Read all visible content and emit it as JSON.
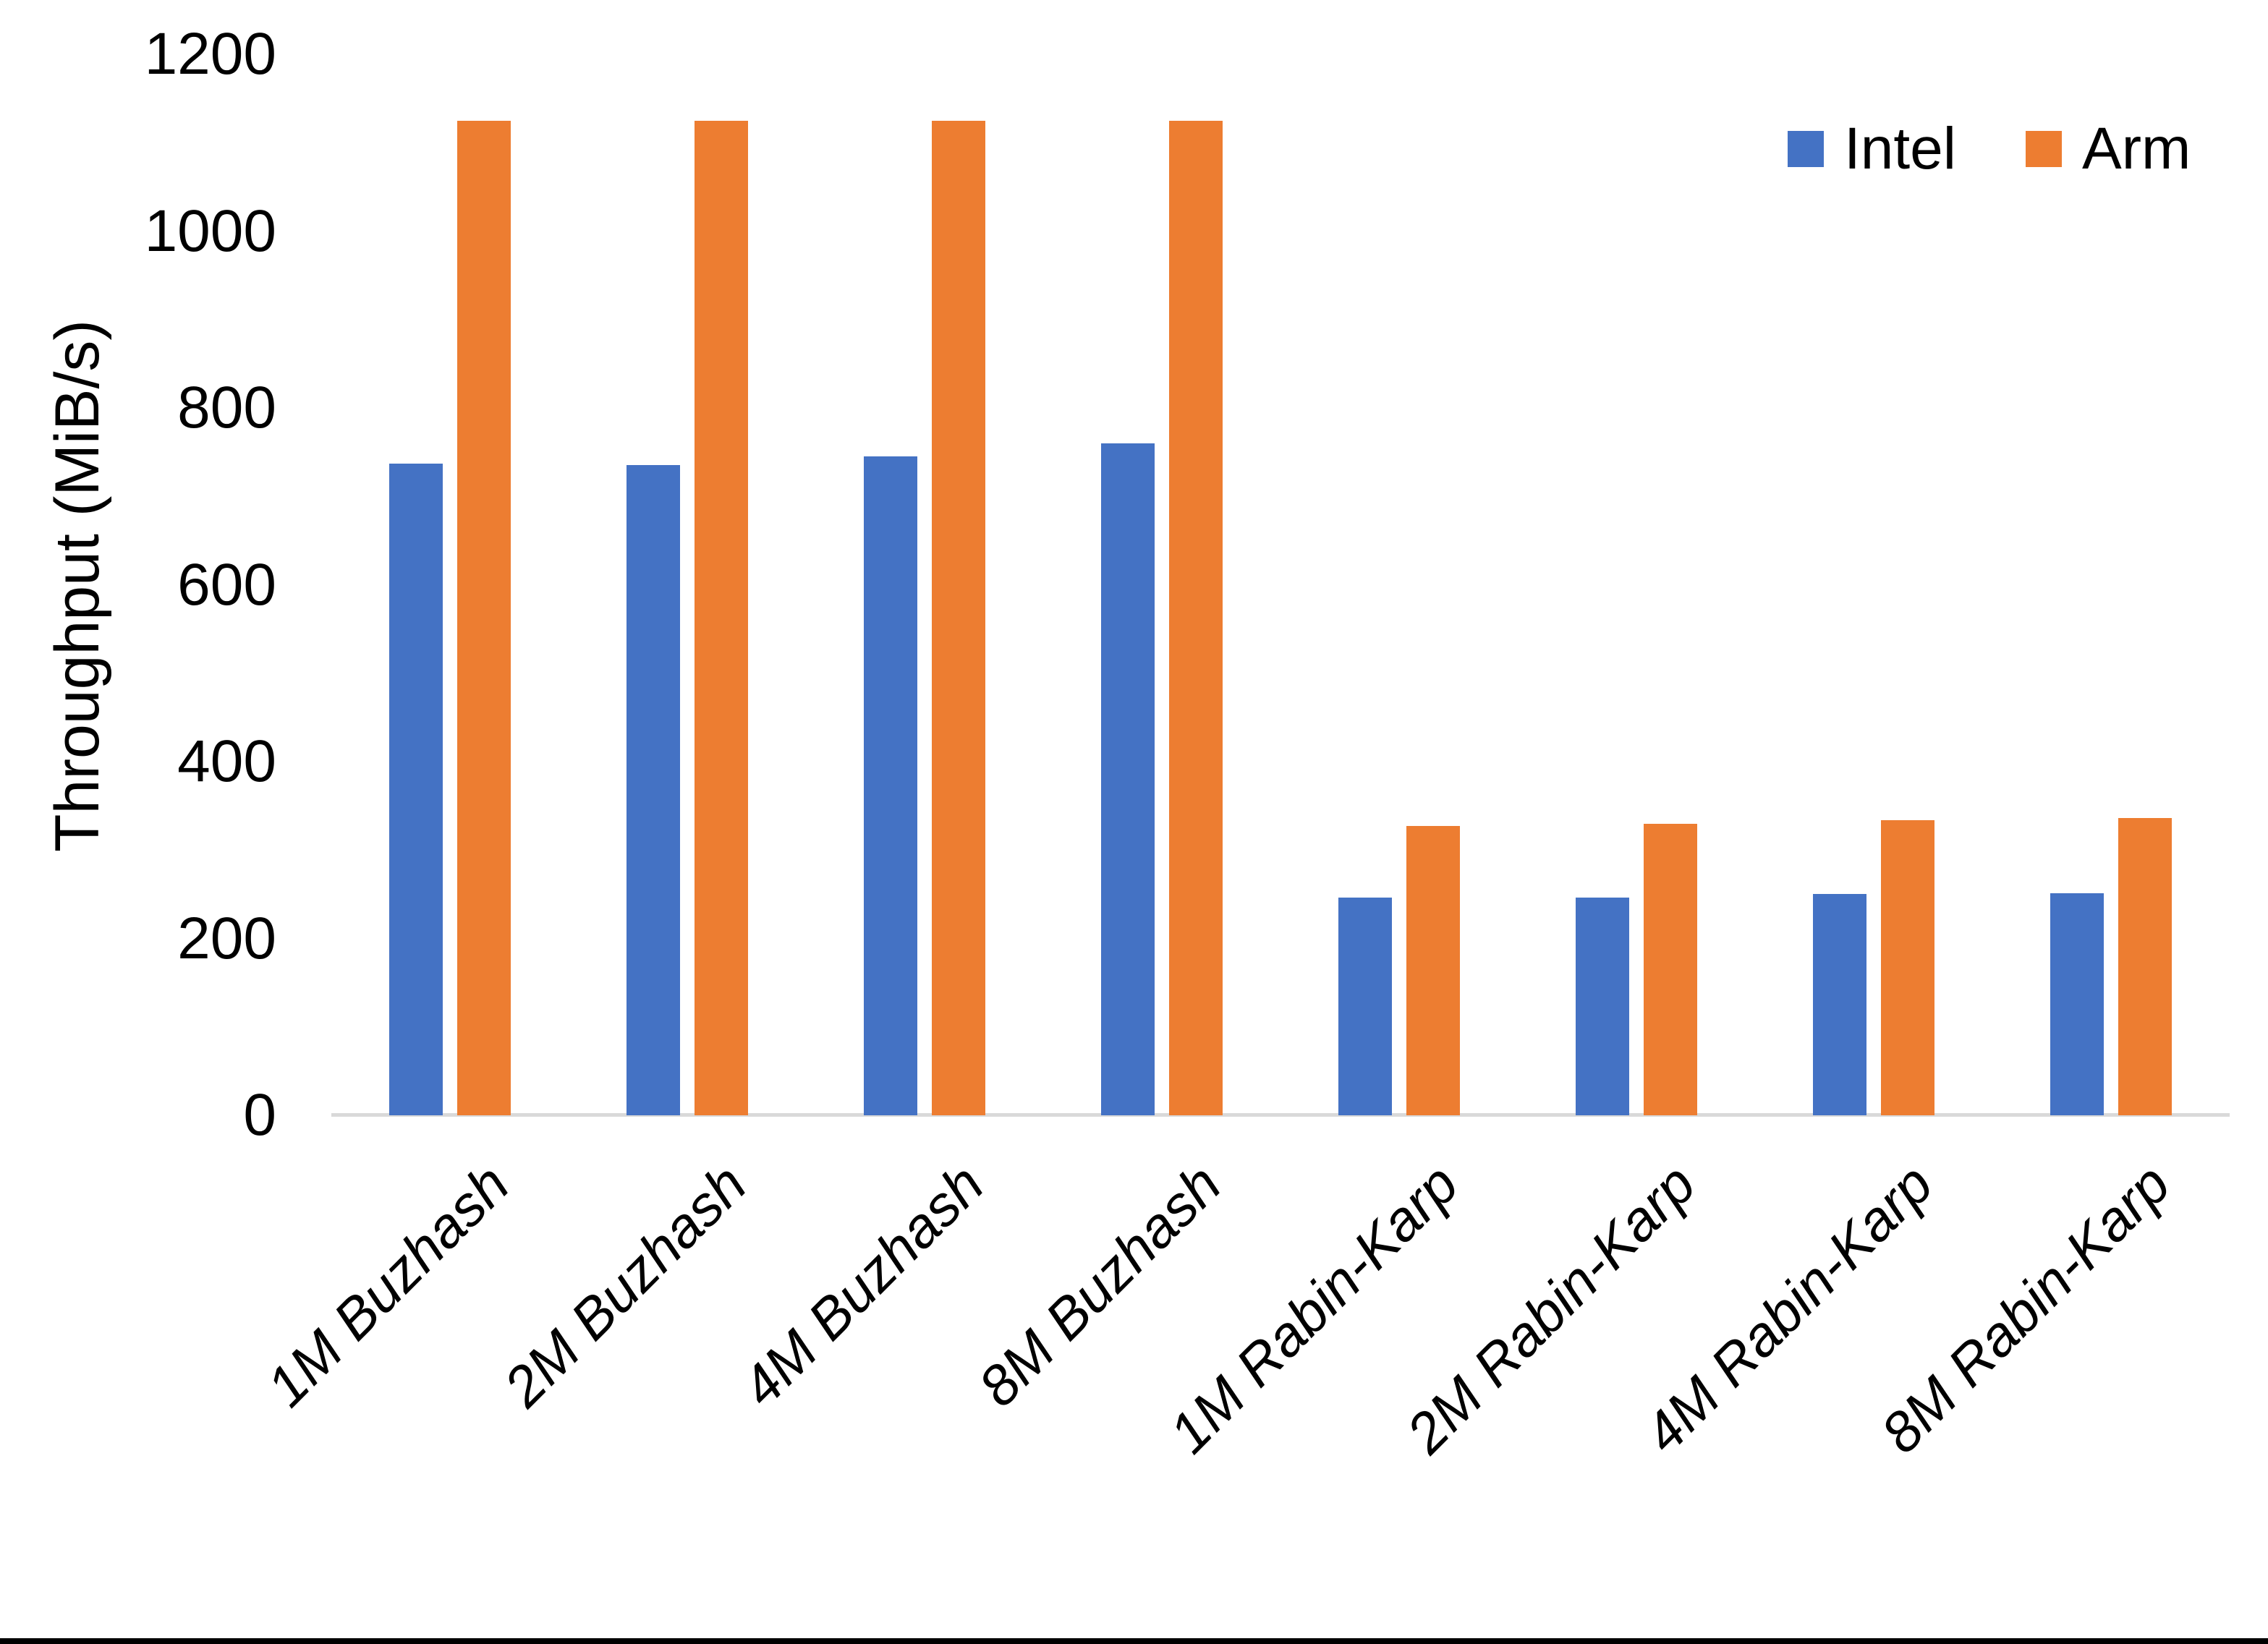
{
  "page": {
    "background": "#FFFFFF",
    "bottom_border_color": "#000000"
  },
  "chart_data": {
    "type": "bar",
    "title": "",
    "xlabel": "",
    "ylabel": "Throughput (MiB/s)",
    "categories": [
      "1M Buzhash",
      "2M Buzhash",
      "4M Buzhash",
      "8M Buzhash",
      "1M Rabin-Karp",
      "2M Rabin-Karp",
      "4M Rabin-Karp",
      "8M Rabin-Karp"
    ],
    "series": [
      {
        "name": "Intel",
        "color": "#4472C4",
        "values": [
          737,
          735,
          745,
          760,
          246,
          246,
          250,
          251
        ]
      },
      {
        "name": "Arm",
        "color": "#ED7D31",
        "values": [
          1125,
          1125,
          1125,
          1125,
          327,
          330,
          334,
          336
        ]
      }
    ],
    "ylim": [
      0,
      1200
    ],
    "y_ticks": [
      0,
      200,
      400,
      600,
      800,
      1000,
      1200
    ],
    "grid": false,
    "legend_position": "top-right",
    "axis_line_color": "#D9D9D9",
    "text_color": "#000000"
  }
}
